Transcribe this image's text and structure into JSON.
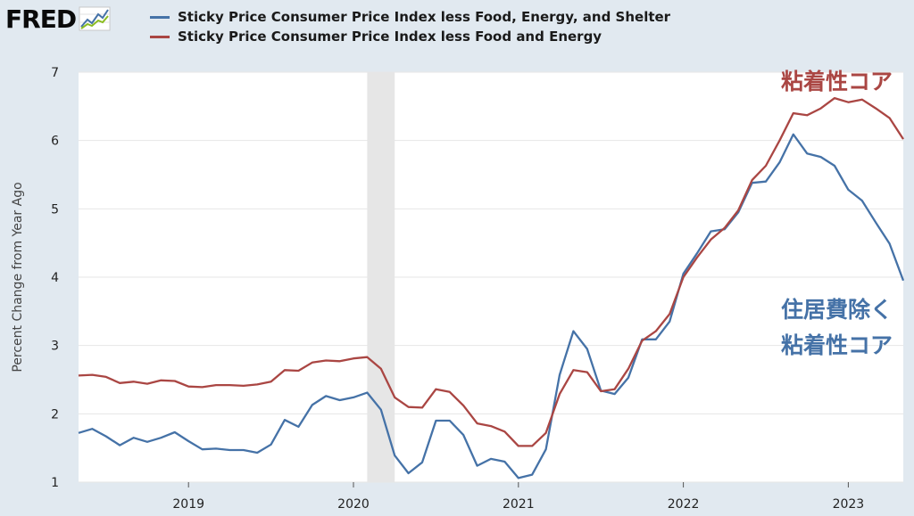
{
  "logo": {
    "text": "FRED",
    "icon": "fred-chart-icon"
  },
  "colors": {
    "background": "#e1e9f0",
    "plot_background": "#ffffff",
    "series_blue": "#4572a7",
    "series_red": "#aa4643",
    "recession": "#e6e6e6",
    "grid": "#e6e6e6"
  },
  "chart_data": {
    "type": "line",
    "ylabel": "Percent Change from Year Ago",
    "xlabel": "",
    "ylim": [
      1,
      7
    ],
    "yticks": [
      1,
      2,
      3,
      4,
      5,
      6,
      7
    ],
    "xlim": [
      "2018-05",
      "2023-05"
    ],
    "xticks": [
      "2019",
      "2020",
      "2021",
      "2022",
      "2023"
    ],
    "grid": "horizontal",
    "legend_position": "top",
    "recession_shading": {
      "start": "2020-02",
      "end": "2020-04"
    },
    "x": [
      "2018-05",
      "2018-06",
      "2018-07",
      "2018-08",
      "2018-09",
      "2018-10",
      "2018-11",
      "2018-12",
      "2019-01",
      "2019-02",
      "2019-03",
      "2019-04",
      "2019-05",
      "2019-06",
      "2019-07",
      "2019-08",
      "2019-09",
      "2019-10",
      "2019-11",
      "2019-12",
      "2020-01",
      "2020-02",
      "2020-03",
      "2020-04",
      "2020-05",
      "2020-06",
      "2020-07",
      "2020-08",
      "2020-09",
      "2020-10",
      "2020-11",
      "2020-12",
      "2021-01",
      "2021-02",
      "2021-03",
      "2021-04",
      "2021-05",
      "2021-06",
      "2021-07",
      "2021-08",
      "2021-09",
      "2021-10",
      "2021-11",
      "2021-12",
      "2022-01",
      "2022-02",
      "2022-03",
      "2022-04",
      "2022-05",
      "2022-06",
      "2022-07",
      "2022-08",
      "2022-09",
      "2022-10",
      "2022-11",
      "2022-12",
      "2023-01",
      "2023-02",
      "2023-03",
      "2023-04",
      "2023-05"
    ],
    "series": [
      {
        "name": "Sticky Price Consumer Price Index less Food, Energy, and Shelter",
        "color": "#4572a7",
        "values": [
          1.72,
          1.78,
          1.67,
          1.54,
          1.65,
          1.59,
          1.65,
          1.73,
          1.6,
          1.48,
          1.49,
          1.47,
          1.47,
          1.43,
          1.55,
          1.91,
          1.81,
          2.13,
          2.26,
          2.2,
          2.24,
          2.31,
          2.06,
          1.39,
          1.13,
          1.29,
          1.9,
          1.9,
          1.69,
          1.24,
          1.34,
          1.3,
          1.06,
          1.11,
          1.48,
          2.57,
          3.21,
          2.95,
          2.34,
          2.29,
          2.53,
          3.09,
          3.09,
          3.35,
          4.05,
          4.35,
          4.67,
          4.7,
          4.95,
          5.38,
          5.4,
          5.68,
          6.09,
          5.81,
          5.76,
          5.63,
          5.28,
          5.12,
          4.8,
          4.49,
          3.95
        ]
      },
      {
        "name": "Sticky Price Consumer Price Index less Food and Energy",
        "color": "#aa4643",
        "values": [
          2.56,
          2.57,
          2.54,
          2.45,
          2.47,
          2.44,
          2.49,
          2.48,
          2.4,
          2.39,
          2.42,
          2.42,
          2.41,
          2.43,
          2.47,
          2.64,
          2.63,
          2.75,
          2.78,
          2.77,
          2.81,
          2.83,
          2.66,
          2.24,
          2.1,
          2.09,
          2.36,
          2.32,
          2.12,
          1.86,
          1.82,
          1.74,
          1.53,
          1.53,
          1.72,
          2.29,
          2.64,
          2.61,
          2.33,
          2.36,
          2.66,
          3.07,
          3.21,
          3.46,
          4.0,
          4.29,
          4.55,
          4.72,
          4.98,
          5.42,
          5.63,
          6.0,
          6.4,
          6.37,
          6.47,
          6.62,
          6.56,
          6.6,
          6.47,
          6.33,
          6.02
        ]
      }
    ],
    "annotations": [
      {
        "text": "粘着性コア",
        "color": "#aa4643"
      },
      {
        "text": "住居費除く",
        "color": "#4572a7"
      },
      {
        "text": "粘着性コア",
        "color": "#4572a7"
      }
    ]
  }
}
